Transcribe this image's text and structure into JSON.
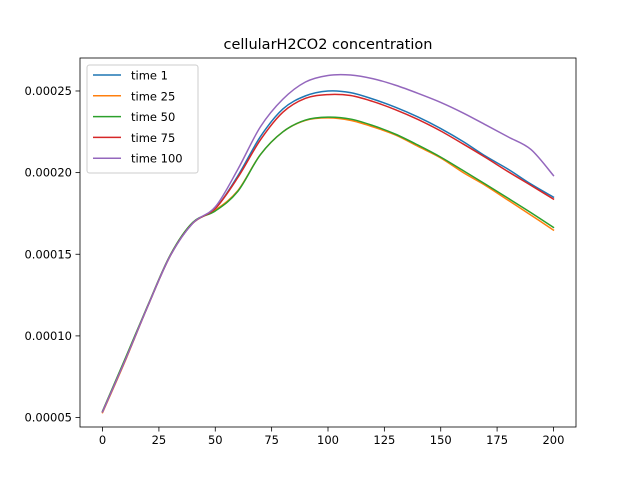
{
  "chart_data": {
    "type": "line",
    "title": "cellularH2CO2 concentration",
    "xlabel": "",
    "ylabel": "",
    "xlim": [
      -10,
      210
    ],
    "ylim": [
      4.42e-05,
      0.0002702
    ],
    "xticks": [
      0,
      25,
      50,
      75,
      100,
      125,
      150,
      175,
      200
    ],
    "xtick_labels": [
      "0",
      "25",
      "50",
      "75",
      "100",
      "125",
      "150",
      "175",
      "200"
    ],
    "yticks": [
      5e-05,
      0.0001,
      0.00015,
      0.0002,
      0.00025
    ],
    "ytick_labels": [
      "0.00005",
      "0.00010",
      "0.00015",
      "0.00020",
      "0.00025"
    ],
    "grid": false,
    "legend_position": "top-left",
    "x": [
      0,
      10,
      20,
      30,
      40,
      50,
      60,
      70,
      80,
      90,
      100,
      110,
      120,
      130,
      140,
      150,
      160,
      170,
      180,
      190,
      200
    ],
    "series": [
      {
        "name": "time 1",
        "color": "#1f77b4",
        "values": [
          5.35e-05,
          8.5e-05,
          0.000118,
          0.000149,
          0.000169,
          0.000178,
          0.000198,
          0.000222,
          0.000239,
          0.000247,
          0.00025,
          0.000249,
          0.000245,
          0.00024,
          0.000234,
          0.000227,
          0.000219,
          0.00021,
          0.000202,
          0.000193,
          0.000185
        ]
      },
      {
        "name": "time 25",
        "color": "#ff7f0e",
        "values": [
          5.3e-05,
          8.45e-05,
          0.000118,
          0.000149,
          0.000169,
          0.000177,
          0.000189,
          0.000211,
          0.000225,
          0.000232,
          0.0002335,
          0.000232,
          0.000228,
          0.000223,
          0.000216,
          0.000209,
          0.0002,
          0.000192,
          0.000183,
          0.000174,
          0.0001648
        ]
      },
      {
        "name": "time 50",
        "color": "#2ca02c",
        "values": [
          5.4e-05,
          8.6e-05,
          0.0001185,
          0.0001495,
          0.0001695,
          0.0001765,
          0.0001885,
          0.000211,
          0.000225,
          0.0002322,
          0.000234,
          0.0002328,
          0.0002288,
          0.0002235,
          0.0002168,
          0.0002095,
          0.0002012,
          0.0001928,
          0.0001842,
          0.0001755,
          0.0001665
        ]
      },
      {
        "name": "time 75",
        "color": "#d62728",
        "values": [
          5.35e-05,
          8.5e-05,
          0.000118,
          0.000149,
          0.000169,
          0.000178,
          0.000197,
          0.00022,
          0.000237,
          0.0002455,
          0.0002478,
          0.0002472,
          0.0002435,
          0.0002385,
          0.0002325,
          0.0002255,
          0.0002175,
          0.0002092,
          0.0002005,
          0.0001922,
          0.0001838
        ]
      },
      {
        "name": "time 100",
        "color": "#9467bd",
        "values": [
          5.35e-05,
          8.5e-05,
          0.000118,
          0.000149,
          0.000169,
          0.000179,
          0.000202,
          0.000228,
          0.000245,
          0.0002555,
          0.0002595,
          0.0002598,
          0.0002575,
          0.0002535,
          0.0002485,
          0.000243,
          0.0002365,
          0.0002292,
          0.0002218,
          0.0002142,
          0.0001982
        ]
      }
    ]
  }
}
